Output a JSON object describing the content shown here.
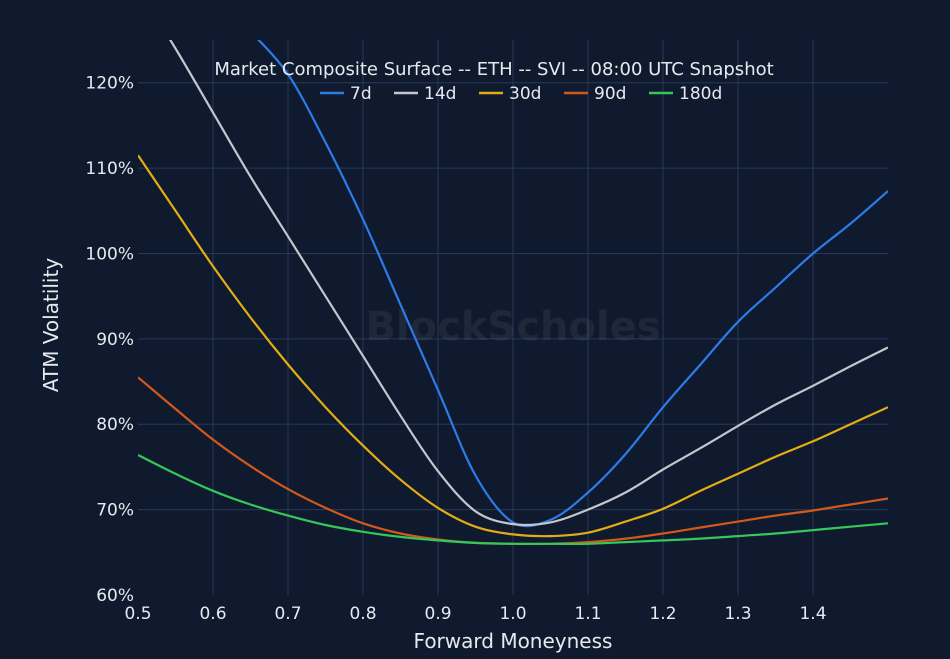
{
  "chart_data": {
    "type": "line",
    "title": "Market Composite Surface -- ETH -- SVI -- 08:00 UTC Snapshot",
    "xlabel": "Forward Moneyness",
    "ylabel": "ATM Volatility",
    "watermark": "BlockScholes",
    "xlim": [
      0.5,
      1.5
    ],
    "ylim": [
      60,
      125
    ],
    "x_ticks": [
      0.5,
      0.6,
      0.7,
      0.8,
      0.9,
      1.0,
      1.1,
      1.2,
      1.3,
      1.4
    ],
    "x_tick_labels": [
      "0.5",
      "0.6",
      "0.7",
      "0.8",
      "0.9",
      "1.0",
      "1.1",
      "1.2",
      "1.3",
      "1.4"
    ],
    "y_ticks": [
      60,
      70,
      80,
      90,
      100,
      110,
      120
    ],
    "y_tick_labels": [
      "60%",
      "70%",
      "80%",
      "90%",
      "100%",
      "110%",
      "120%"
    ],
    "grid": true,
    "legend_position": "top-center",
    "x": [
      0.5,
      0.55,
      0.6,
      0.65,
      0.7,
      0.75,
      0.8,
      0.85,
      0.9,
      0.95,
      1.0,
      1.05,
      1.1,
      1.15,
      1.2,
      1.25,
      1.3,
      1.35,
      1.4,
      1.45,
      1.5
    ],
    "series": [
      {
        "name": "7d",
        "color": "#2d7be8",
        "values": [
          null,
          null,
          null,
          126,
          121,
          113,
          104,
          94,
          84,
          74,
          68.5,
          68.8,
          72,
          76.5,
          82,
          87,
          92,
          96,
          100,
          103.5,
          107.3
        ]
      },
      {
        "name": "14d",
        "color": "#c3c6cc",
        "values": [
          131,
          124,
          116.5,
          109,
          102,
          95,
          88,
          81,
          74.5,
          69.8,
          68.3,
          68.5,
          70,
          72,
          74.7,
          77.2,
          79.8,
          82.3,
          84.5,
          86.8,
          89
        ]
      },
      {
        "name": "30d",
        "color": "#e1ad15",
        "values": [
          111.5,
          105,
          98.5,
          92.5,
          87,
          82,
          77.5,
          73.5,
          70.2,
          68,
          67.1,
          66.9,
          67.3,
          68.6,
          70.1,
          72.2,
          74.2,
          76.2,
          78,
          80,
          82
        ]
      },
      {
        "name": "90d",
        "color": "#d2581b",
        "values": [
          85.5,
          81.8,
          78.2,
          75.1,
          72.4,
          70.2,
          68.4,
          67.2,
          66.5,
          66.1,
          66,
          66,
          66.2,
          66.6,
          67.2,
          67.9,
          68.6,
          69.3,
          69.9,
          70.6,
          71.3
        ]
      },
      {
        "name": "180d",
        "color": "#35c759",
        "values": [
          76.4,
          74.2,
          72.2,
          70.6,
          69.3,
          68.2,
          67.4,
          66.8,
          66.4,
          66.1,
          66,
          66,
          66,
          66.2,
          66.4,
          66.6,
          66.9,
          67.2,
          67.6,
          68,
          68.4
        ]
      }
    ]
  }
}
